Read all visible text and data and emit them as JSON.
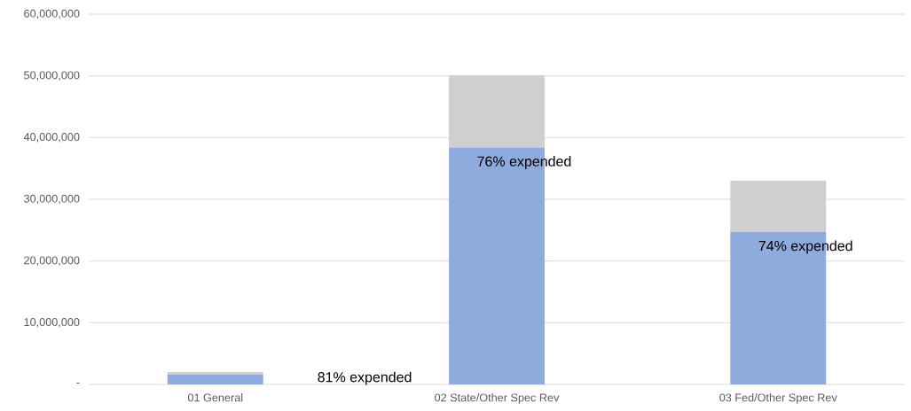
{
  "chart_data": {
    "type": "bar",
    "stacked": true,
    "categories": [
      "01 General",
      "02 State/Other Spec Rev",
      "03 Fed/Other Spec Rev"
    ],
    "series": [
      {
        "color": "#8faadc",
        "values": [
          1600000,
          38400000,
          24700000
        ]
      },
      {
        "color": "#d0cecf",
        "values": [
          400000,
          11700000,
          8300000
        ]
      }
    ],
    "ylim": [
      0,
      60000000
    ],
    "yticks": [
      {
        "value": 0,
        "label": "-"
      },
      {
        "value": 10000000,
        "label": "10,000,000"
      },
      {
        "value": 20000000,
        "label": "20,000,000"
      },
      {
        "value": 30000000,
        "label": "30,000,000"
      },
      {
        "value": 40000000,
        "label": "40,000,000"
      },
      {
        "value": 50000000,
        "label": "50,000,000"
      },
      {
        "value": 60000000,
        "label": "60,000,000"
      }
    ],
    "grid": "y",
    "annotations": [
      "81% expended",
      "76% expended",
      "74% expended"
    ]
  }
}
